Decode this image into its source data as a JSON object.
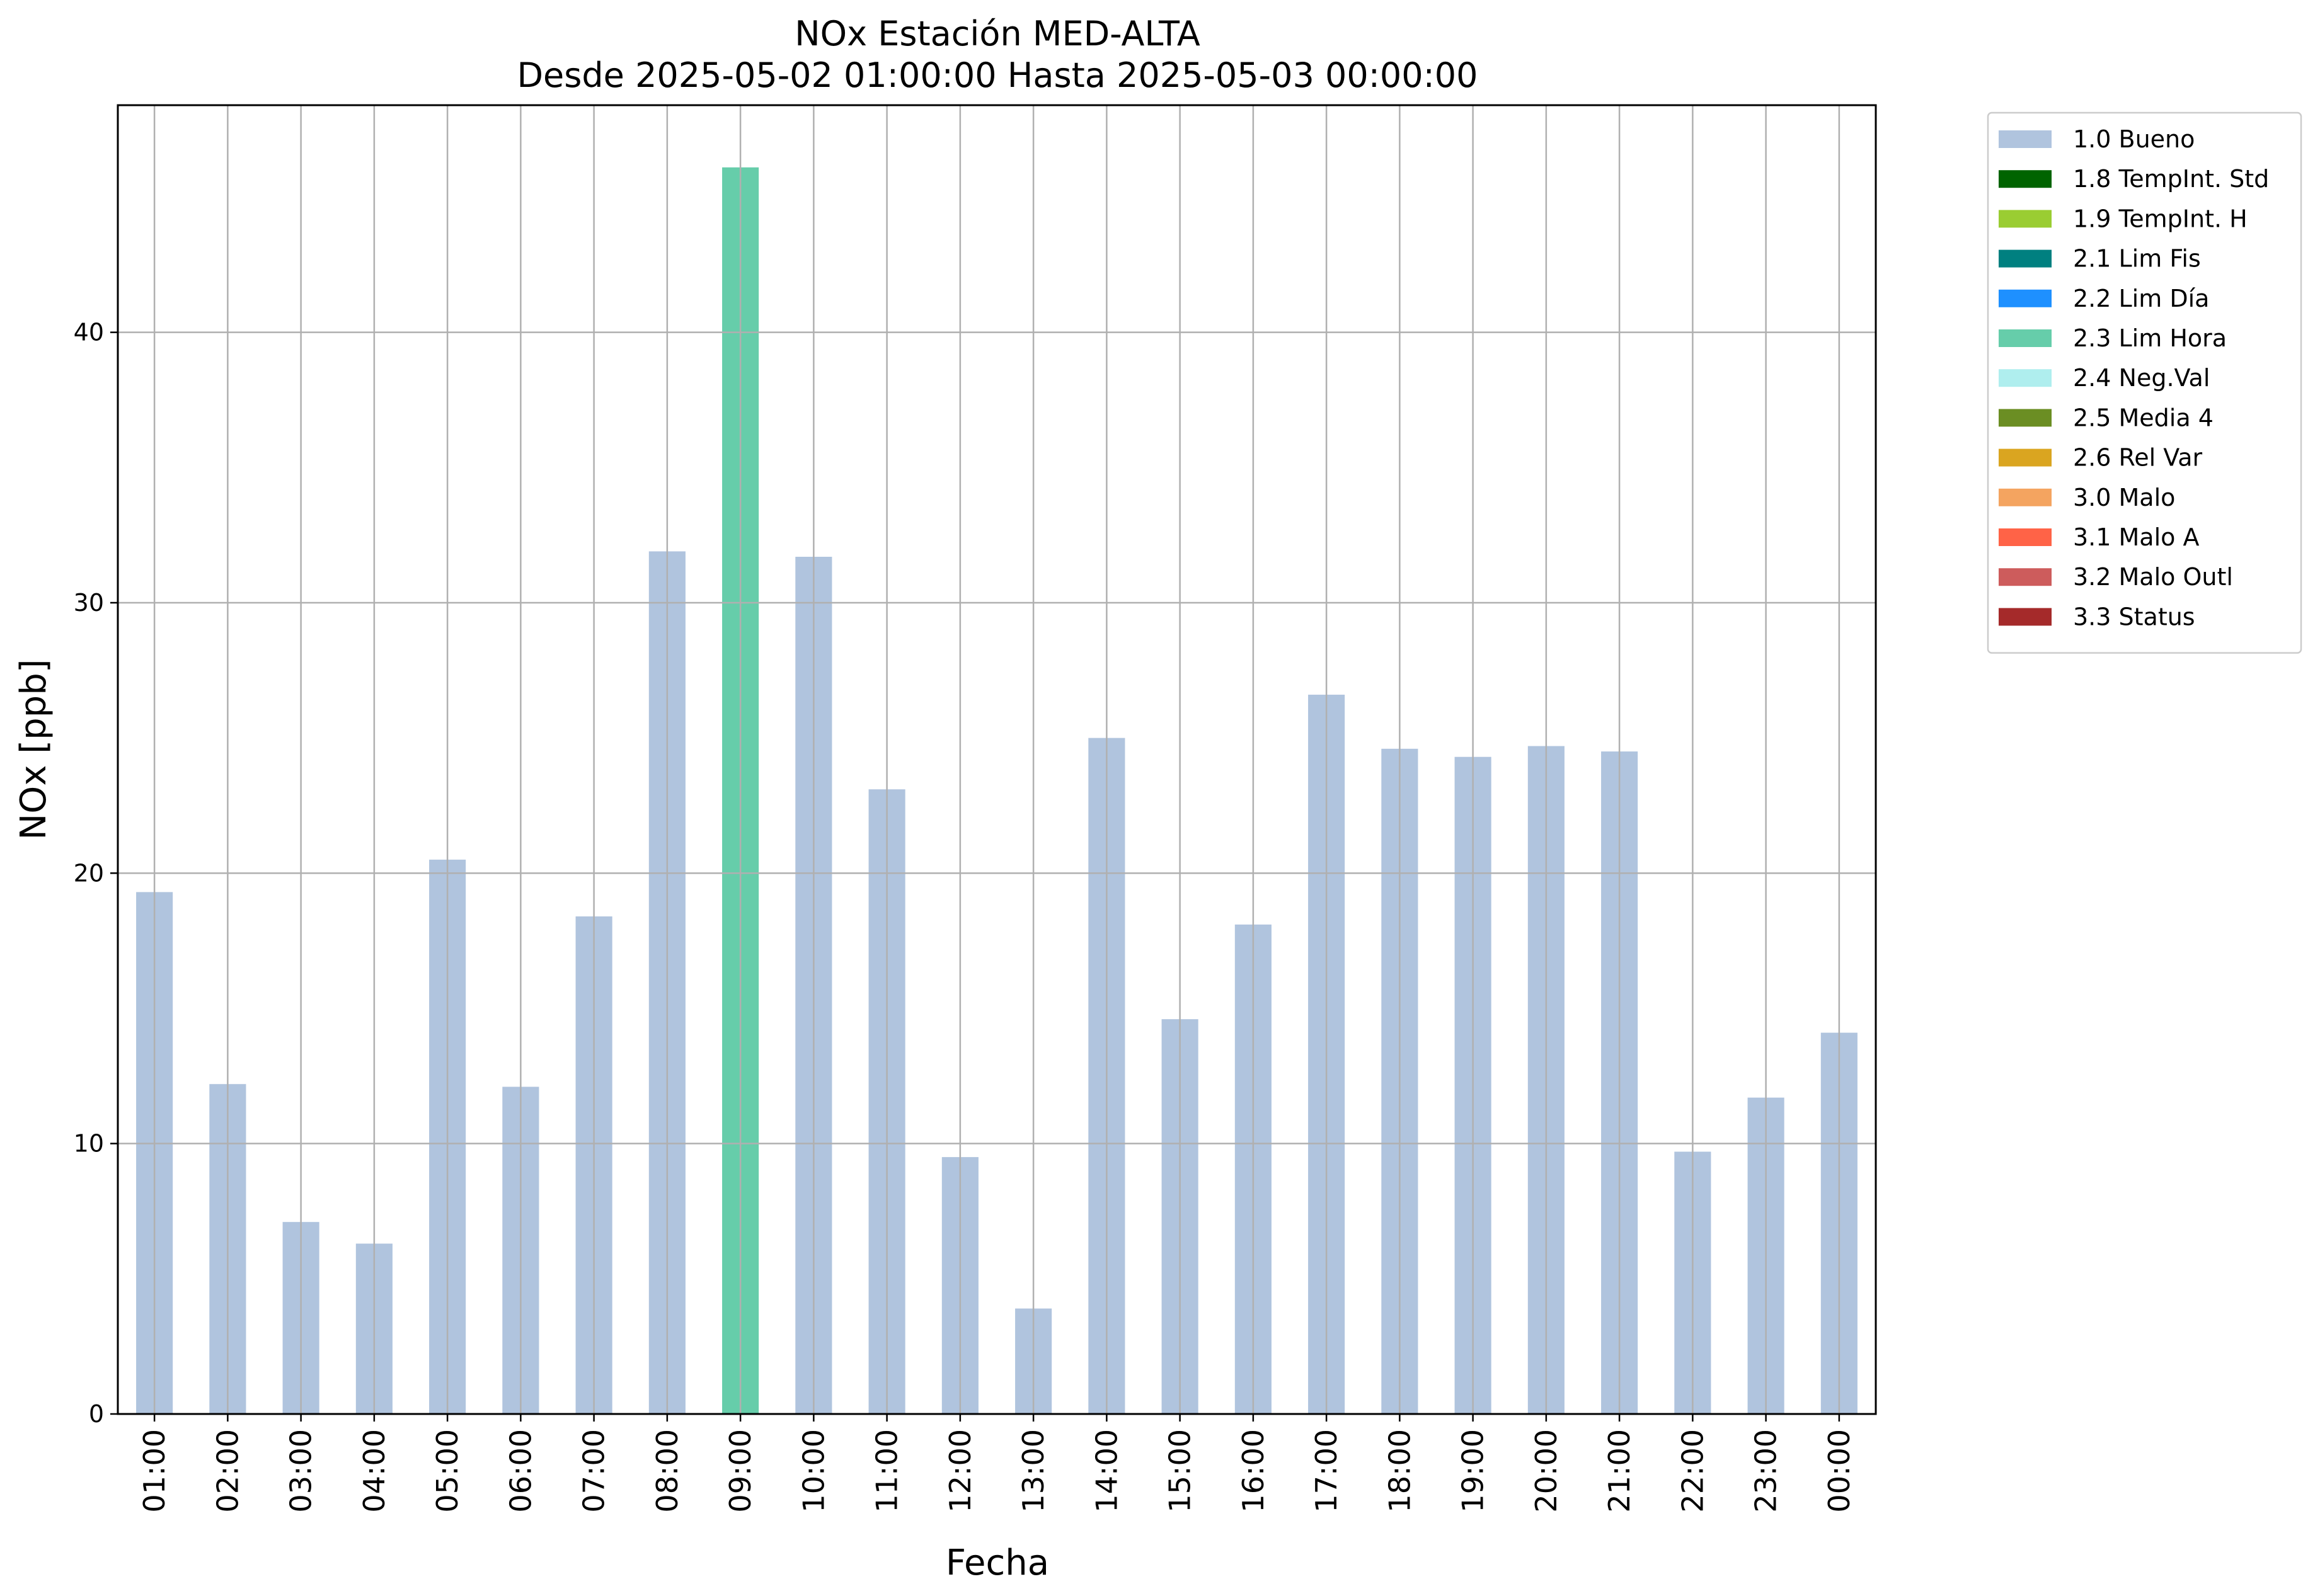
{
  "chart_data": {
    "type": "bar",
    "title": "NOx Estación MED-ALTA",
    "subtitle": "Desde 2025-05-02 01:00:00 Hasta 2025-05-03 00:00:00",
    "xlabel": "Fecha",
    "ylabel": "NOx [ppb]",
    "ylim": [
      0,
      48.4
    ],
    "yticks": [
      0,
      10,
      20,
      30,
      40
    ],
    "grid": true,
    "legend_position": "outside-right",
    "categories": [
      "01:00",
      "02:00",
      "03:00",
      "04:00",
      "05:00",
      "06:00",
      "07:00",
      "08:00",
      "09:00",
      "10:00",
      "11:00",
      "12:00",
      "13:00",
      "14:00",
      "15:00",
      "16:00",
      "17:00",
      "18:00",
      "19:00",
      "20:00",
      "21:00",
      "22:00",
      "23:00",
      "00:00"
    ],
    "values": [
      19.3,
      12.2,
      7.1,
      6.3,
      20.5,
      12.1,
      18.4,
      31.9,
      46.1,
      31.7,
      23.1,
      9.5,
      3.9,
      25.0,
      14.6,
      18.1,
      26.6,
      24.6,
      24.3,
      24.7,
      24.5,
      9.7,
      11.7,
      14.1
    ],
    "flags": [
      "1.0 Bueno",
      "1.0 Bueno",
      "1.0 Bueno",
      "1.0 Bueno",
      "1.0 Bueno",
      "1.0 Bueno",
      "1.0 Bueno",
      "1.0 Bueno",
      "2.3 Lim Hora",
      "1.0 Bueno",
      "1.0 Bueno",
      "1.0 Bueno",
      "1.0 Bueno",
      "1.0 Bueno",
      "1.0 Bueno",
      "1.0 Bueno",
      "1.0 Bueno",
      "1.0 Bueno",
      "1.0 Bueno",
      "1.0 Bueno",
      "1.0 Bueno",
      "1.0 Bueno",
      "1.0 Bueno",
      "1.0 Bueno"
    ],
    "legend": [
      {
        "label": "1.0 Bueno",
        "color": "#b0c4de"
      },
      {
        "label": "1.8 TempInt. Std",
        "color": "#006400"
      },
      {
        "label": "1.9 TempInt. H",
        "color": "#9acd32"
      },
      {
        "label": "2.1 Lim Fis",
        "color": "#008080"
      },
      {
        "label": "2.2 Lim Día",
        "color": "#1e90ff"
      },
      {
        "label": "2.3 Lim Hora",
        "color": "#66cdaa"
      },
      {
        "label": "2.4 Neg.Val",
        "color": "#afeeee"
      },
      {
        "label": "2.5 Media 4",
        "color": "#6b8e23"
      },
      {
        "label": "2.6 Rel Var",
        "color": "#daa520"
      },
      {
        "label": "3.0 Malo",
        "color": "#f4a460"
      },
      {
        "label": "3.1 Malo A",
        "color": "#ff6347"
      },
      {
        "label": "3.2 Malo Outl",
        "color": "#cd5c5c"
      },
      {
        "label": "3.3 Status",
        "color": "#a52a2a"
      }
    ]
  }
}
